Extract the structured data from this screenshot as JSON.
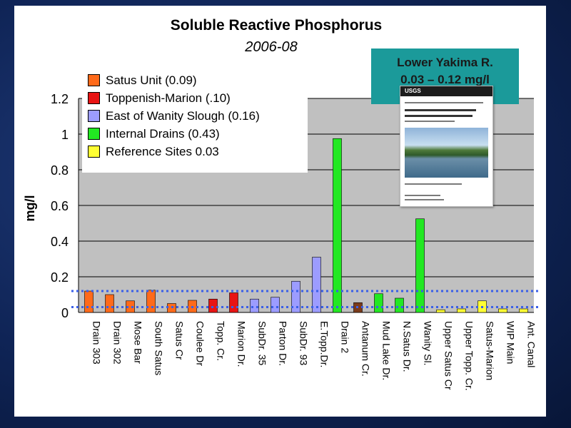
{
  "chart_data": {
    "type": "bar",
    "title": "Soluble Reactive Phosphorus",
    "subtitle": "2006-08",
    "ylabel": "mg/l",
    "xlabel": "",
    "ylim": [
      0,
      1.2
    ],
    "yticks": [
      "0",
      "0.2",
      "0.4",
      "0.6",
      "0.8",
      "1",
      "1.2"
    ],
    "grid": true,
    "categories": [
      "Drain 303",
      "Drain 302",
      "Mose Bar",
      "South Satus",
      "Satus Cr",
      "Coulee Dr",
      "Topp. Cr.",
      "Marion Dr.",
      "SubDr. 35",
      "Parton Dr.",
      "SubDr. 93",
      "E.Topp.Dr.",
      "Drain 2",
      "Antanum Cr.",
      "Mud Lake Dr.",
      "N.Satus Dr.",
      "Wanity Sl.",
      "Upper Satus Cr",
      "Upper Topp. Cr.",
      "Satus-Marion",
      "WIP Main",
      "Ant. Canal"
    ],
    "values": [
      0.12,
      0.1,
      0.065,
      0.125,
      0.05,
      0.068,
      0.075,
      0.11,
      0.075,
      0.085,
      0.175,
      0.31,
      0.975,
      0.055,
      0.105,
      0.08,
      0.525,
      0.015,
      0.02,
      0.065,
      0.02,
      0.02
    ],
    "groups": [
      0,
      0,
      0,
      0,
      0,
      0,
      1,
      1,
      2,
      2,
      2,
      2,
      3,
      1,
      3,
      3,
      3,
      4,
      4,
      4,
      4,
      4
    ],
    "legend": [
      {
        "label": "Satus Unit (0.09)",
        "color": "#ff6a1a"
      },
      {
        "label": "Toppenish-Marion (.10)",
        "color": "#e81414"
      },
      {
        "label": "East of Wanity Slough (0.16)",
        "color": "#9c9cff"
      },
      {
        "label": "Internal Drains (0.43)",
        "color": "#22e822"
      },
      {
        "label": "Reference Sites 0.03",
        "color": "#ffff33"
      }
    ],
    "special_colors": {
      "13": "#7a3a1a"
    },
    "reference_lines": [
      0.12,
      0.03
    ],
    "reference_line_color": "#3a5fe8",
    "legend_position": "top-left",
    "plot_background": "#c0c0c0"
  },
  "callout": {
    "line1": "Lower Yakima R.",
    "line2": "0.03 – 0.12 mg/l"
  },
  "report_cover": {
    "logo": "USGS"
  }
}
